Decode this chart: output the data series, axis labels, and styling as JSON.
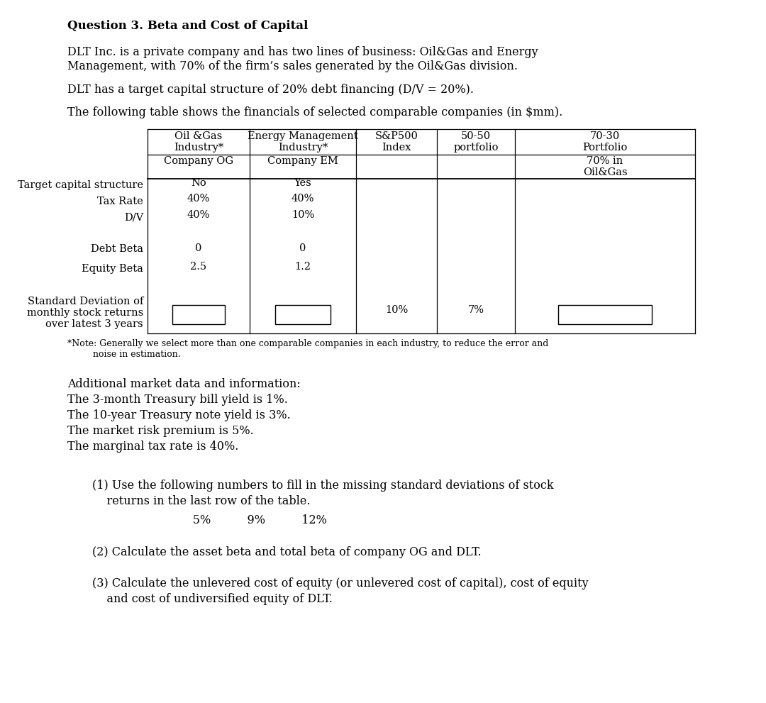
{
  "title": "Question 3. Beta and Cost of Capital",
  "para1a": "DLT Inc. is a private company and has two lines of business: Oil&Gas and Energy",
  "para1b": "Management, with 70% of the firm’s sales generated by the Oil&Gas division.",
  "para2": "DLT has a target capital structure of 20% debt financing (D/V = 20%).",
  "para3": "The following table shows the financials of selected comparable companies (in $mm).",
  "col_headers_row1": [
    "Oil &Gas\nIndustry*",
    "Energy Management\nIndustry*",
    "S&P500\nIndex",
    "50-50\nportfolio",
    "70-30\nPortfolio"
  ],
  "col_headers_row2": [
    "Company OG",
    "Company EM",
    "",
    "",
    "70% in\nOil&Gas"
  ],
  "note": "*Note: Generally we select more than one comparable companies in each industry, to reduce the error and\n         noise in estimation.",
  "additional_header": "Additional market data and information:",
  "additional_lines": [
    "The 3-month Treasury bill yield is 1%.",
    "The 10-year Treasury note yield is 3%.",
    "The market risk premium is 5%.",
    "The marginal tax rate is 40%."
  ],
  "q1_line1": "(1) Use the following numbers to fill in the missing standard deviations of stock",
  "q1_line2": "    returns in the last row of the table.",
  "q1_values_line": "              5%          9%          12%",
  "q2_text": "(2) Calculate the asset beta and total beta of company OG and DLT.",
  "q3_line1": "(3) Calculate the unlevered cost of equity (or unlevered cost of capital), cost of equity",
  "q3_line2": "    and cost of undiversified equity of DLT.",
  "bg_color": "#ffffff",
  "text_color": "#000000",
  "fs_title": 12,
  "fs_body": 11.5,
  "fs_table": 10.5,
  "fs_note": 9.0
}
